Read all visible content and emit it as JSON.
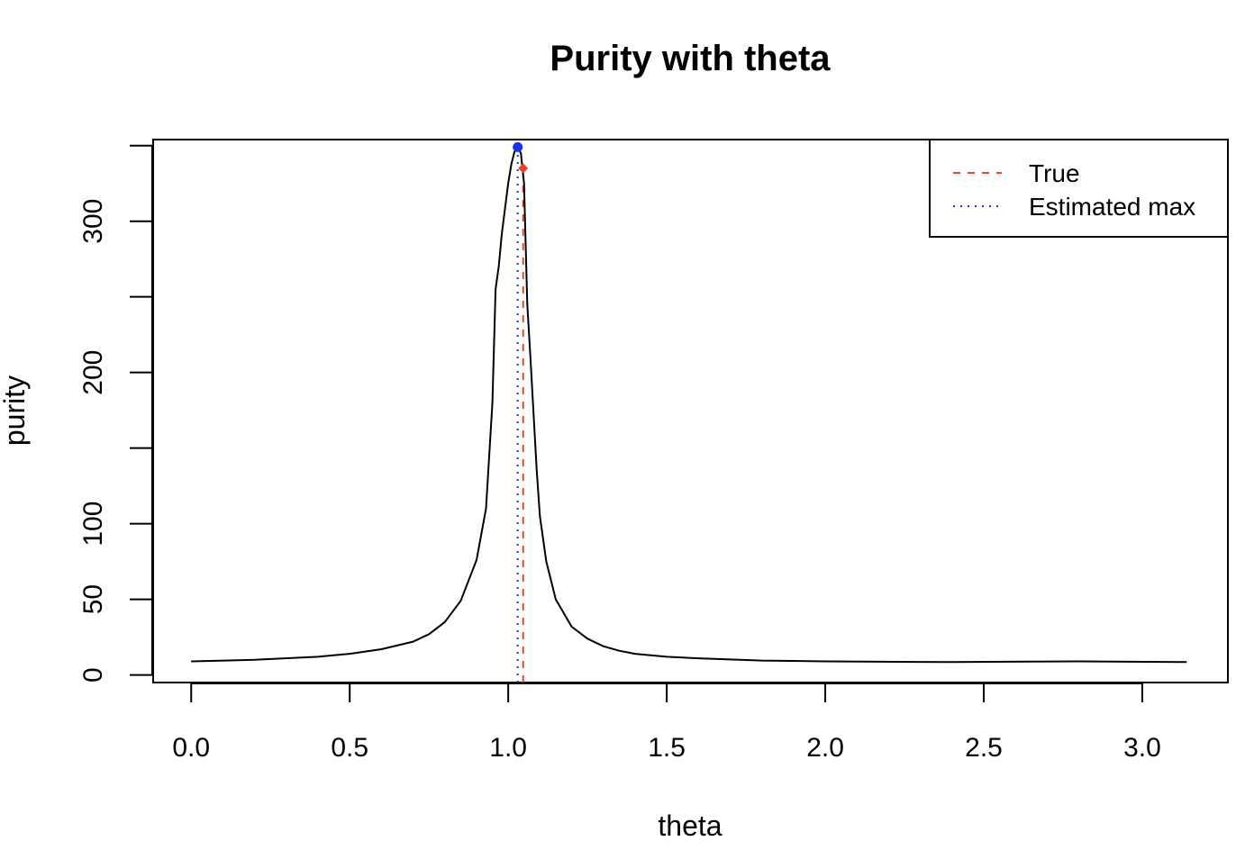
{
  "chart_data": {
    "type": "line",
    "title": "Purity with theta",
    "xlabel": "theta",
    "ylabel": "purity",
    "xlim": [
      -0.12,
      3.27
    ],
    "ylim": [
      -5,
      354
    ],
    "x_ticks": [
      0.0,
      0.5,
      1.0,
      1.5,
      2.0,
      2.5,
      3.0
    ],
    "x_tick_labels": [
      "0.0",
      "0.5",
      "1.0",
      "1.5",
      "2.0",
      "2.5",
      "3.0"
    ],
    "y_ticks": [
      0,
      50,
      100,
      150,
      200,
      250,
      300,
      350
    ],
    "y_tick_labels": [
      "0",
      "50",
      "100",
      "",
      "200",
      "",
      "300",
      ""
    ],
    "grid": false,
    "legend": {
      "position": "top-right",
      "entries": [
        {
          "label": "True",
          "color": "#E8412C",
          "style": "dashed"
        },
        {
          "label": "Estimated max",
          "color": "#1A34E8",
          "style": "dotted"
        }
      ]
    },
    "series": [
      {
        "color": "#000000",
        "x": [
          0.0,
          0.2,
          0.4,
          0.5,
          0.6,
          0.7,
          0.75,
          0.8,
          0.85,
          0.9,
          0.93,
          0.95,
          0.96,
          0.97,
          0.98,
          1.0,
          1.01,
          1.02,
          1.03,
          1.04,
          1.05,
          1.06,
          1.07,
          1.09,
          1.1,
          1.12,
          1.15,
          1.2,
          1.25,
          1.3,
          1.35,
          1.4,
          1.5,
          1.6,
          1.8,
          2.0,
          2.4,
          2.8,
          3.14
        ],
        "y": [
          9,
          10,
          12,
          14,
          17,
          22,
          27,
          35,
          49,
          76,
          110,
          180,
          255,
          270,
          292,
          325,
          338,
          346,
          349,
          345,
          325,
          245,
          210,
          135,
          105,
          75,
          50,
          32,
          24,
          19,
          16,
          14,
          12,
          11,
          9.5,
          9,
          8.5,
          9,
          8.5
        ]
      }
    ],
    "vertical_lines": [
      {
        "name": "True",
        "x": 1.047,
        "color": "#E8412C",
        "style": "dashed"
      },
      {
        "name": "Estimated max",
        "x": 1.03,
        "color": "#1A34E8",
        "style": "dotted"
      }
    ],
    "markers": [
      {
        "x": 1.03,
        "y": 349,
        "color": "#1A34E8",
        "shape": "circle"
      },
      {
        "x": 1.047,
        "y": 335,
        "color": "#E8412C",
        "shape": "diamond"
      }
    ]
  }
}
